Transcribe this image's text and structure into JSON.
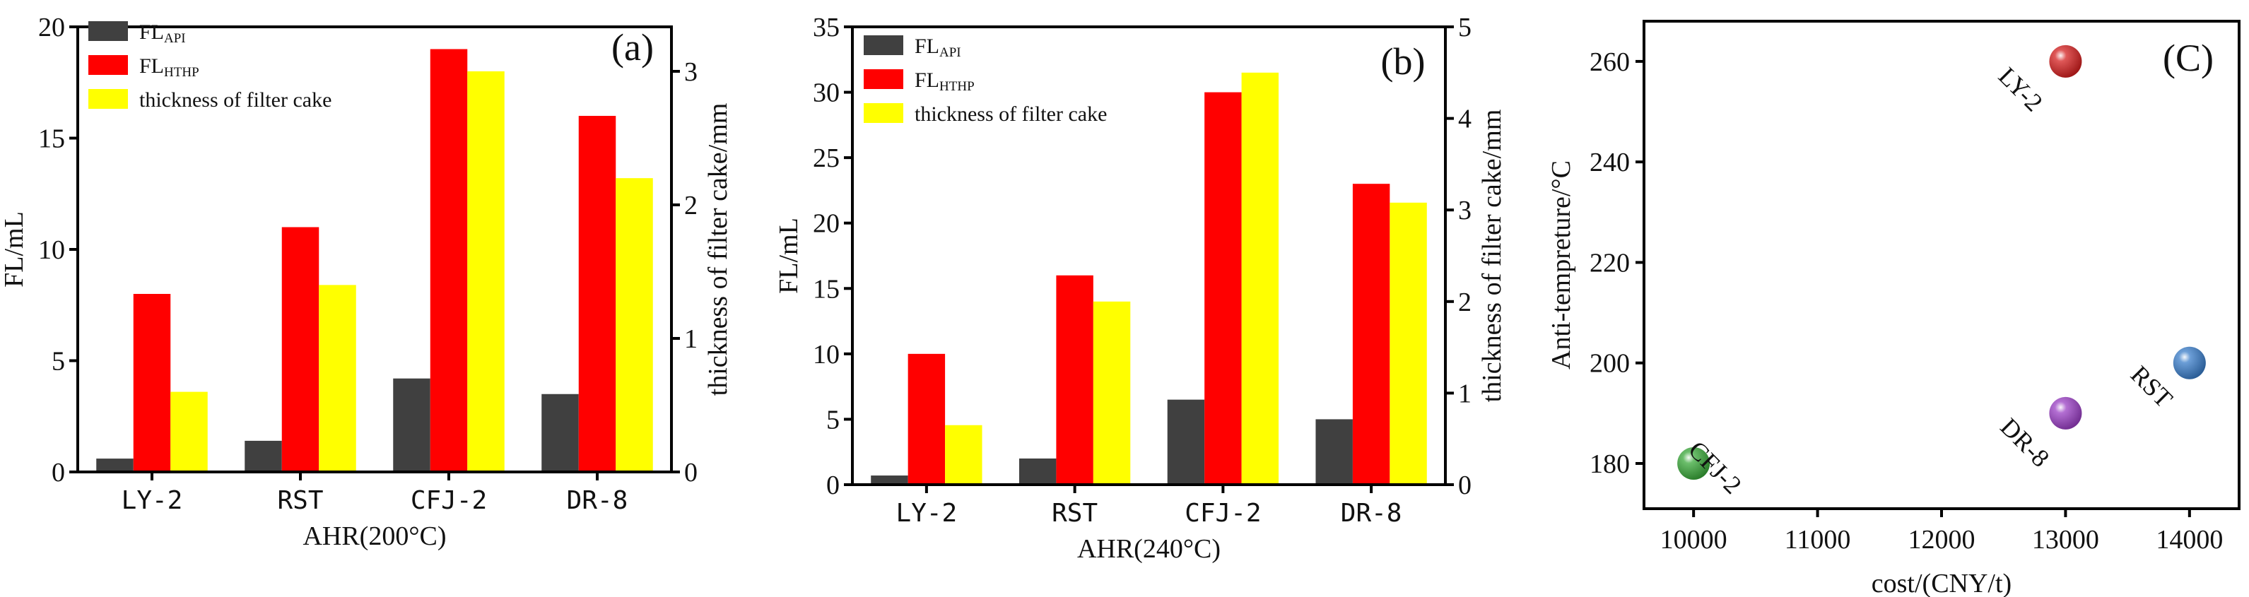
{
  "colors": {
    "api": "#404040",
    "hthp": "#ff0000",
    "cake": "#ffff00"
  },
  "chart_data": [
    {
      "type": "bar",
      "panel": "(a)",
      "categories": [
        "LY-2",
        "RST",
        "CFJ-2",
        "DR-8"
      ],
      "xlabel": "AHR(200°C)",
      "ylabel": "FL/mL",
      "ylabel_right": "thickness of filter cake/mm",
      "ylim": [
        0,
        20
      ],
      "ylim_right": [
        0,
        3.333
      ],
      "yticks": [
        0,
        5,
        10,
        15,
        20
      ],
      "yticks_right": [
        0,
        1,
        2,
        3
      ],
      "legend_position": "top-left",
      "series": [
        {
          "name": "FL",
          "sub": "API",
          "axis": "left",
          "values": [
            0.6,
            1.4,
            4.2,
            3.5
          ]
        },
        {
          "name": "FL",
          "sub": "HTHP",
          "axis": "left",
          "values": [
            8,
            11,
            19,
            16
          ]
        },
        {
          "name": "thickness of filter cake",
          "sub": "",
          "axis": "right",
          "values": [
            0.6,
            1.4,
            3.0,
            2.2
          ]
        }
      ]
    },
    {
      "type": "bar",
      "panel": "(b)",
      "categories": [
        "LY-2",
        "RST",
        "CFJ-2",
        "DR-8"
      ],
      "xlabel": "AHR(240°C)",
      "ylabel": "FL/mL",
      "ylabel_right": "thickness of filter cake/mm",
      "ylim": [
        0,
        35
      ],
      "ylim_right": [
        0,
        5
      ],
      "yticks": [
        0,
        5,
        10,
        15,
        20,
        25,
        30,
        35
      ],
      "yticks_right": [
        0,
        1,
        2,
        3,
        4,
        5
      ],
      "legend_position": "top-left",
      "series": [
        {
          "name": "FL",
          "sub": "API",
          "axis": "left",
          "values": [
            0.7,
            2,
            6.5,
            5
          ]
        },
        {
          "name": "FL",
          "sub": "HTHP",
          "axis": "left",
          "values": [
            10,
            16,
            30,
            23
          ]
        },
        {
          "name": "thickness of filter cake",
          "sub": "",
          "axis": "right",
          "values": [
            0.65,
            2.0,
            4.5,
            3.08
          ]
        }
      ]
    },
    {
      "type": "scatter",
      "panel": "(C)",
      "xlabel": "cost/(CNY/t)",
      "ylabel": "Anti-tempreture/°C",
      "xlim": [
        9600,
        14400
      ],
      "ylim": [
        171,
        268
      ],
      "xticks": [
        10000,
        11000,
        12000,
        13000,
        14000
      ],
      "yticks": [
        180,
        200,
        220,
        240,
        260
      ],
      "points": [
        {
          "label": "LY-2",
          "x": 13000,
          "y": 260,
          "color": "#d42020"
        },
        {
          "label": "RST",
          "x": 14000,
          "y": 200,
          "color": "#3a7dc9"
        },
        {
          "label": "DR-8",
          "x": 13000,
          "y": 190,
          "color": "#9a3fc4"
        },
        {
          "label": "CFJ-2",
          "x": 10000,
          "y": 180,
          "color": "#3aa83a"
        }
      ]
    }
  ]
}
